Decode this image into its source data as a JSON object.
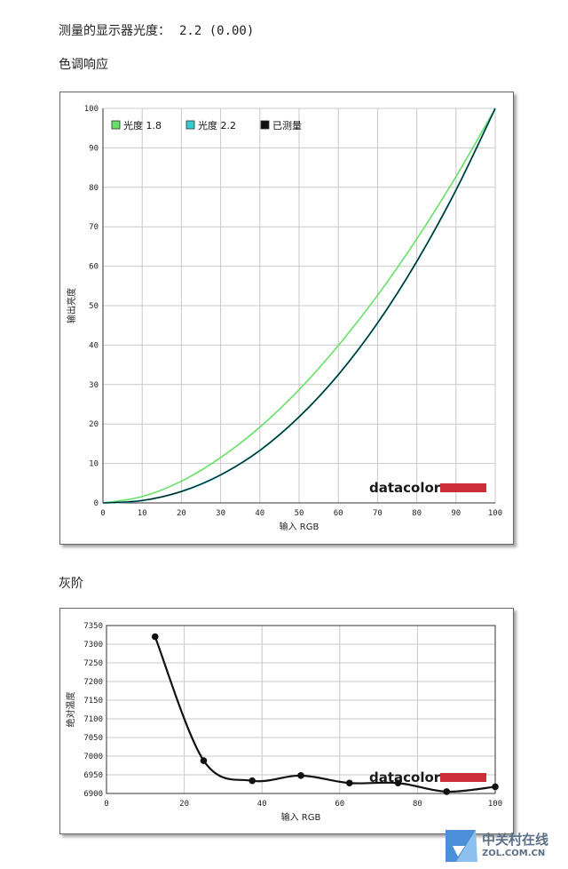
{
  "header": {
    "gamma_label": "测量的显示器光度：",
    "gamma_value": "2.2 (0.00)",
    "tone_title": "色调响应",
    "gray_title": "灰阶"
  },
  "logo_text": "datacolor",
  "watermark": {
    "line1": "中关村在线",
    "line2": "ZOL.COM.CN"
  },
  "colors": {
    "gamma18": "#66e066",
    "gamma22": "#33cccc",
    "measured": "#111111",
    "logo_bar": "#cc2d3a"
  },
  "chart_data": [
    {
      "type": "line",
      "xlabel": "输入 RGB",
      "ylabel": "输出亮度",
      "xlim": [
        0,
        100
      ],
      "ylim": [
        0,
        100
      ],
      "xticks": [
        "0",
        "10",
        "20",
        "30",
        "40",
        "50",
        "60",
        "70",
        "80",
        "90",
        "100"
      ],
      "yticks": [
        "0",
        "10",
        "20",
        "30",
        "40",
        "50",
        "60",
        "70",
        "80",
        "90",
        "100"
      ],
      "grid": true,
      "legend_position": "top-left",
      "series": [
        {
          "name": "光度 1.8",
          "x": [
            0,
            10,
            20,
            30,
            40,
            50,
            60,
            70,
            80,
            90,
            100
          ],
          "values": [
            0,
            1.6,
            5.5,
            11.5,
            19.2,
            28.7,
            39.9,
            52.6,
            66.9,
            82.7,
            100
          ]
        },
        {
          "name": "光度 2.2",
          "x": [
            0,
            10,
            20,
            30,
            40,
            50,
            60,
            70,
            80,
            90,
            100
          ],
          "values": [
            0,
            0.6,
            2.9,
            7.1,
            13.3,
            21.8,
            32.5,
            45.6,
            61.2,
            79.3,
            100
          ]
        },
        {
          "name": "已测量",
          "x": [
            0,
            10,
            20,
            30,
            40,
            50,
            60,
            70,
            80,
            90,
            100
          ],
          "values": [
            0,
            0.6,
            2.9,
            7.1,
            13.3,
            21.8,
            32.5,
            45.6,
            61.2,
            79.3,
            100
          ]
        }
      ]
    },
    {
      "type": "line",
      "xlabel": "输入 RGB",
      "ylabel": "绝对温度",
      "xlim": [
        0,
        100
      ],
      "ylim": [
        6900,
        7350
      ],
      "xticks": [
        "0",
        "20",
        "40",
        "60",
        "80",
        "100"
      ],
      "yticks": [
        "6900",
        "6950",
        "7000",
        "7050",
        "7100",
        "7150",
        "7200",
        "7250",
        "7300",
        "7350"
      ],
      "grid": true,
      "series": [
        {
          "x": [
            12.5,
            25,
            37.5,
            50,
            62.5,
            75,
            87.5,
            100
          ],
          "values": [
            7320,
            6988,
            6934,
            6948,
            6928,
            6928,
            6905,
            6918
          ]
        }
      ]
    }
  ]
}
